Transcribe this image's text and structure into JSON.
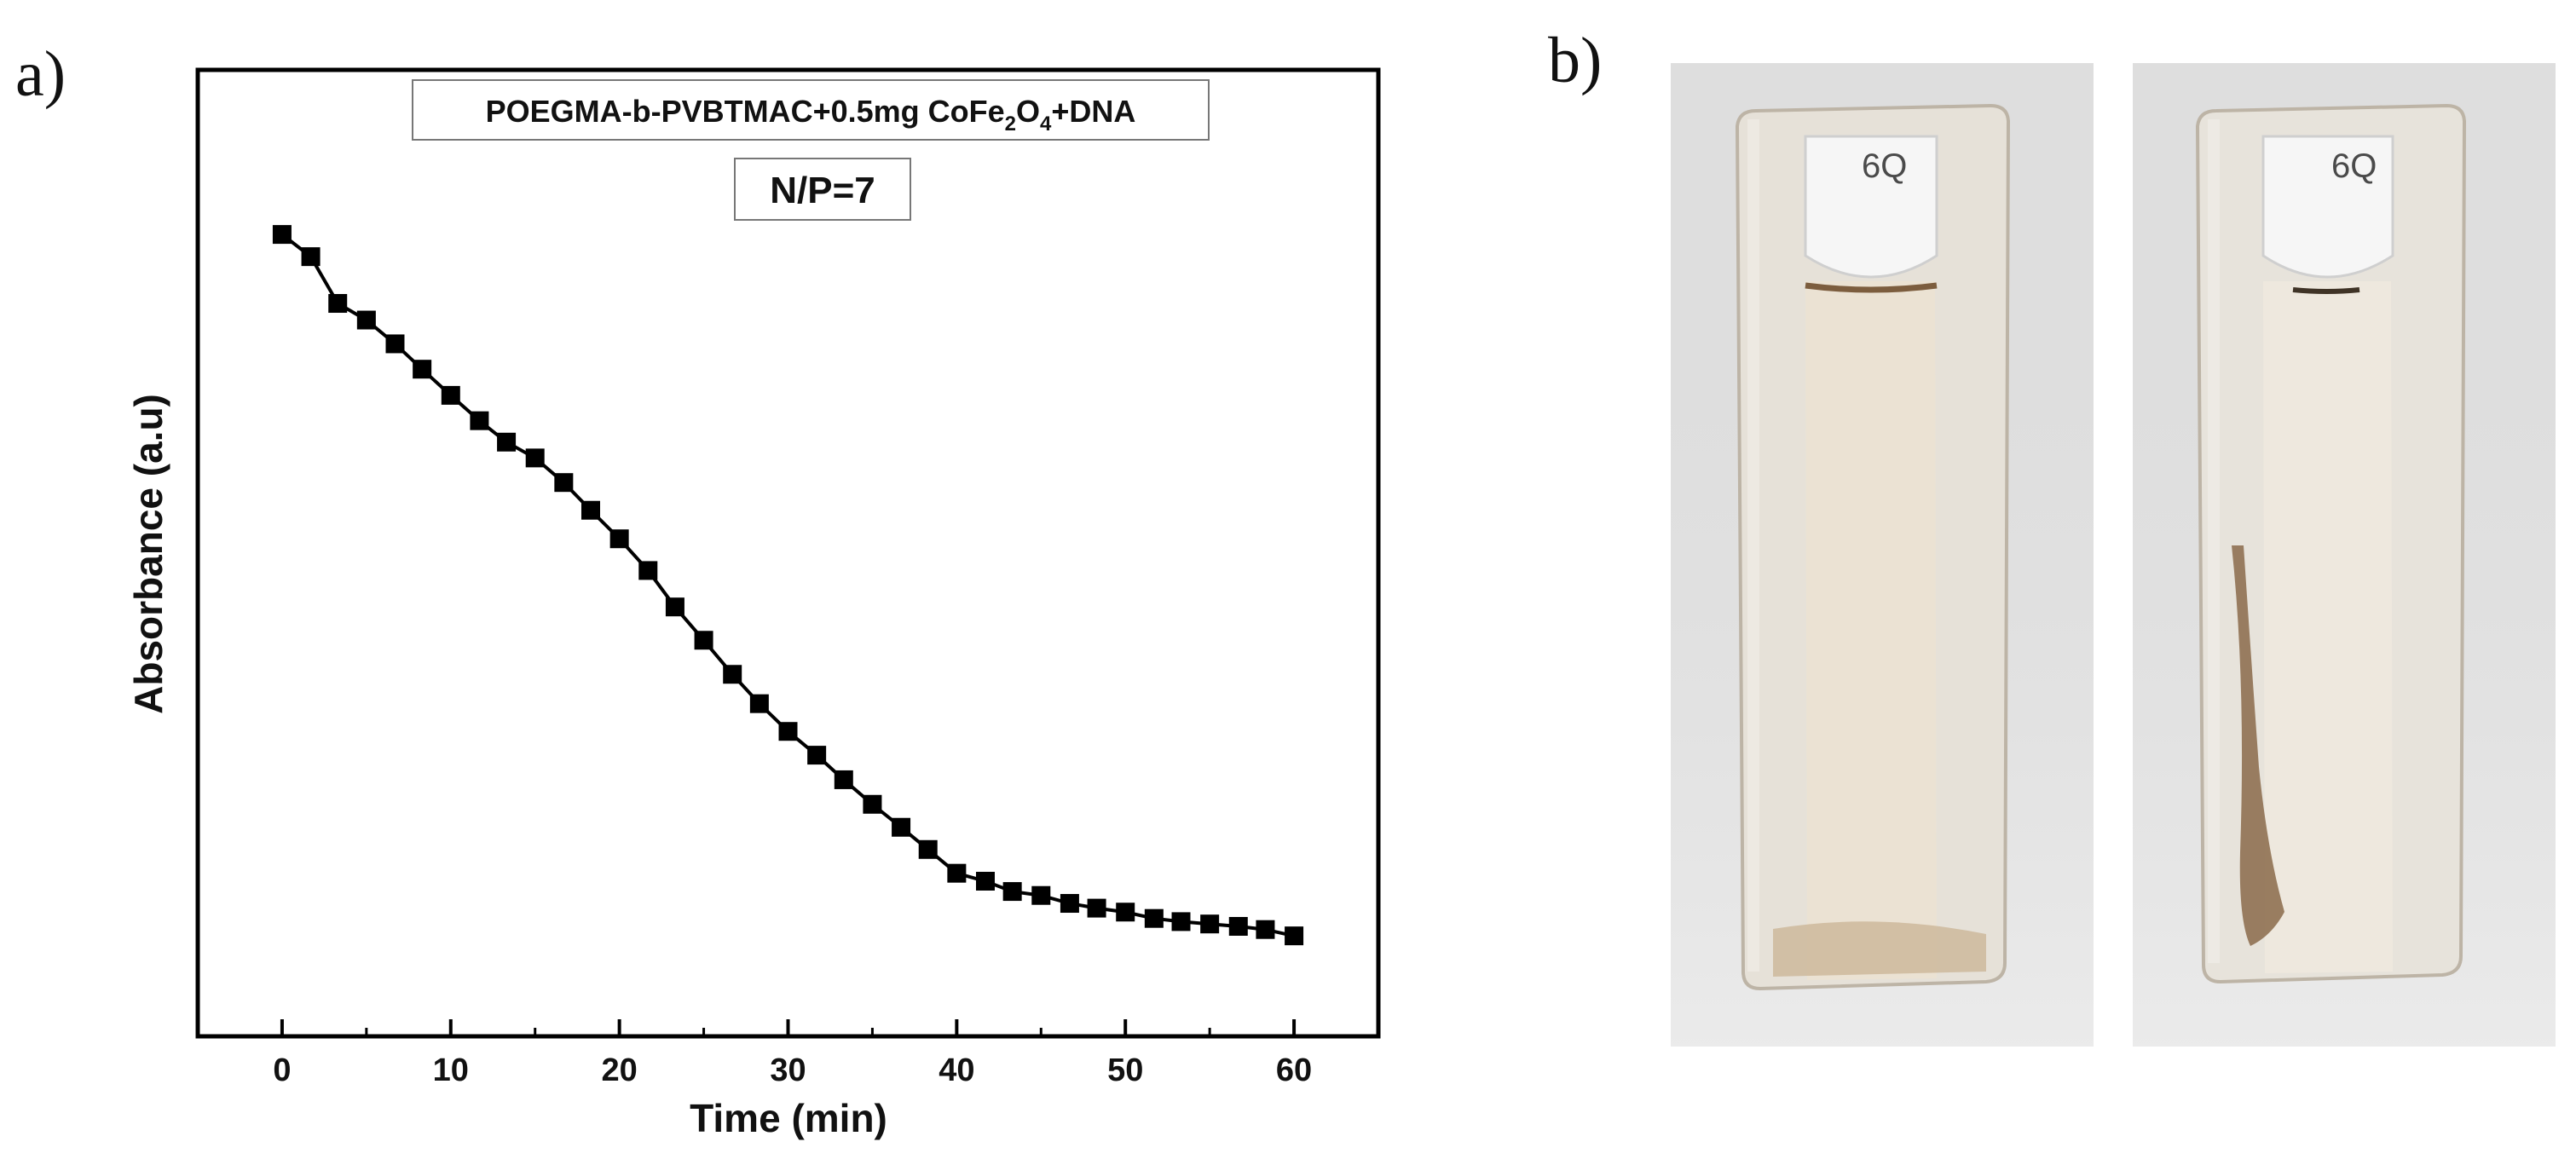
{
  "panel_labels": {
    "a": "a)",
    "b": "b)"
  },
  "chart_data": {
    "type": "scatter",
    "title": "POEGMA-b-PVBTMAC+0.5mg CoFe2O4+DNA",
    "title_parts": {
      "pre": "POEGMA-b-PVBTMAC+0.5mg CoFe",
      "sub1": "2",
      "mid": "O",
      "sub2": "4",
      "post": "+DNA"
    },
    "subtitle": "N/P=7",
    "xlabel": "Time (min)",
    "ylabel": "Absorbance (a.u)",
    "xlim": [
      -5,
      65
    ],
    "ylim": [
      0,
      1
    ],
    "xticks": [
      0,
      10,
      20,
      30,
      40,
      50,
      60
    ],
    "xtick_labels": [
      "0",
      "10",
      "20",
      "30",
      "40",
      "50",
      "60"
    ],
    "y_tick_labels_shown": false,
    "marker": "square",
    "line": true,
    "color": "#000000",
    "series": [
      {
        "name": "Absorbance",
        "x": [
          0,
          1.7,
          3.3,
          5,
          6.7,
          8.3,
          10,
          11.7,
          13.3,
          15,
          16.7,
          18.3,
          20,
          21.7,
          23.3,
          25,
          26.7,
          28.3,
          30,
          31.7,
          33.3,
          35,
          36.7,
          38.3,
          40,
          41.7,
          43.3,
          45,
          46.7,
          48.3,
          50,
          51.7,
          53.3,
          55,
          56.7,
          58.3,
          60
        ],
        "y": [
          0.93,
          0.902,
          0.843,
          0.822,
          0.792,
          0.76,
          0.727,
          0.695,
          0.668,
          0.648,
          0.617,
          0.582,
          0.546,
          0.506,
          0.46,
          0.418,
          0.375,
          0.338,
          0.303,
          0.273,
          0.242,
          0.211,
          0.182,
          0.154,
          0.124,
          0.114,
          0.101,
          0.096,
          0.086,
          0.08,
          0.075,
          0.067,
          0.063,
          0.06,
          0.057,
          0.053,
          0.045
        ]
      }
    ]
  },
  "photos": {
    "cuvette_label": "6Q",
    "left_caption": "",
    "right_caption": ""
  },
  "colors": {
    "axis": "#000000",
    "photo_background": "#dcdcdc",
    "glass": "#e8e4dc",
    "liquid": "#ece2d4",
    "sediment": "#8a6a4a"
  }
}
